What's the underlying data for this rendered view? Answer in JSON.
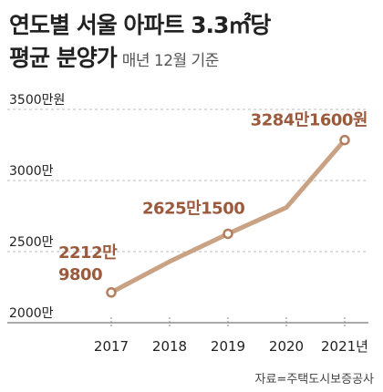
{
  "title_line1": "연도별 서울 아파트 3.3㎡당",
  "title_line2_main": "평균 분양가",
  "title_line2_sub": "매년 12월 기준",
  "source": "자료=주택도시보증공사",
  "colors": {
    "line": "#c8a283",
    "marker": "#b57f5d",
    "label": "#9b5a3c",
    "grid": "#bcbcbc",
    "text": "#222222"
  },
  "chart_data": {
    "type": "line",
    "title": "연도별 서울 아파트 3.3㎡당 평균 분양가",
    "subtitle": "매년 12월 기준",
    "x": [
      "2017",
      "2018",
      "2019",
      "2020",
      "2021"
    ],
    "y": [
      2212.98,
      2430,
      2625.15,
      2810,
      3284.16
    ],
    "y_unit": "만원",
    "ylim": [
      2000,
      3500
    ],
    "yticks": [
      "2000만",
      "2500만",
      "3000만",
      "3500만원"
    ],
    "xtick_last_label": "2021년",
    "grid": "horizontal dashed",
    "markers_at": [
      "2017",
      "2019",
      "2021"
    ],
    "data_labels": [
      {
        "x": "2017",
        "lines": [
          "2212만",
          "9800"
        ]
      },
      {
        "x": "2019",
        "lines": [
          "2625만1500"
        ]
      },
      {
        "x": "2021",
        "lines": [
          "3284만1600원"
        ]
      }
    ]
  }
}
